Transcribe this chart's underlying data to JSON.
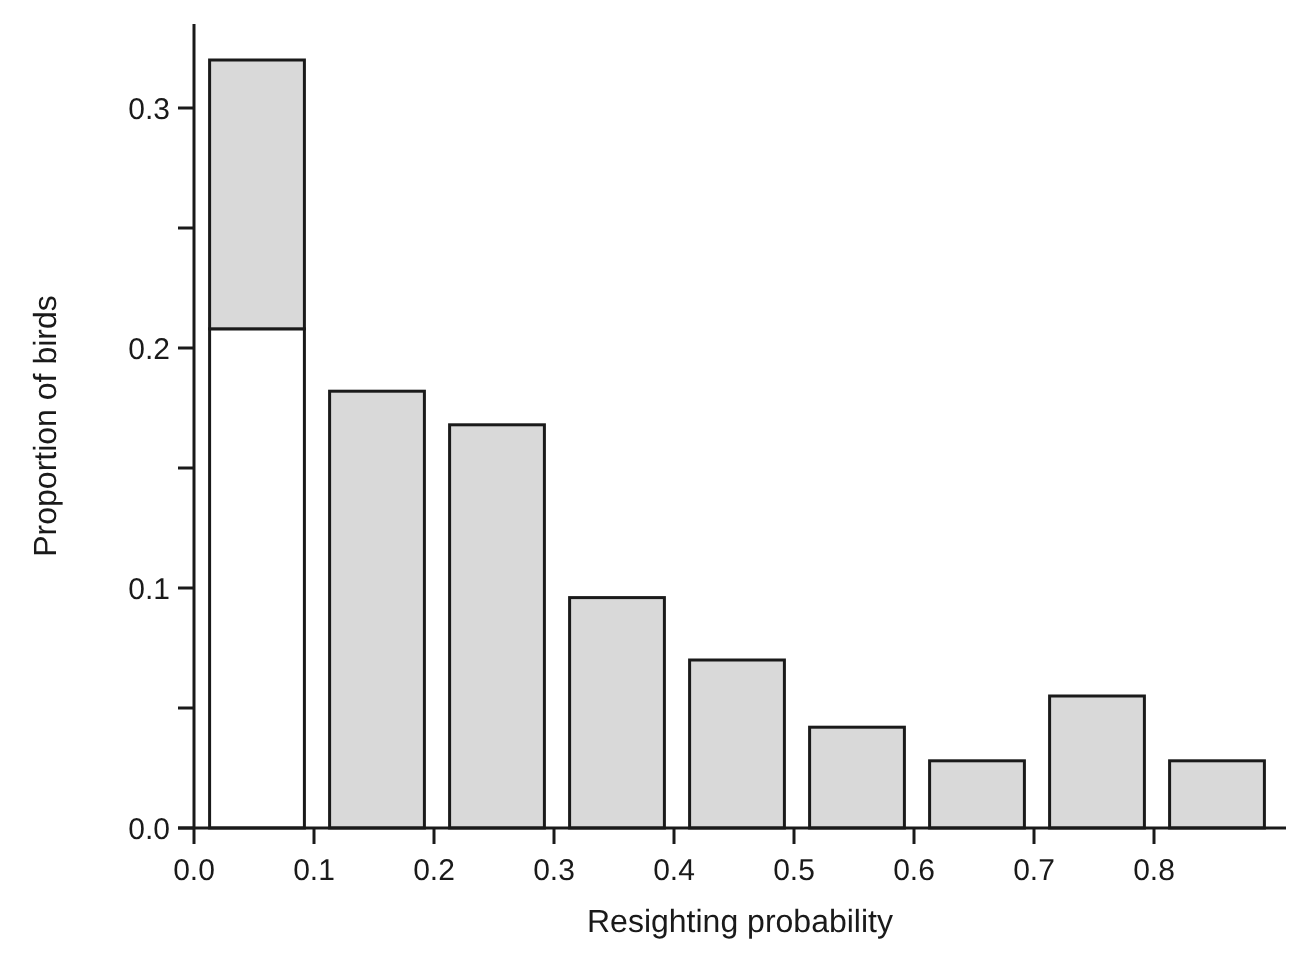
{
  "chart_data": {
    "type": "bar",
    "xlabel": "Resighting probability",
    "ylabel": "Proportion of birds",
    "x": [
      0.05,
      0.15,
      0.25,
      0.35,
      0.45,
      0.55,
      0.65,
      0.75,
      0.85
    ],
    "stacked": true,
    "series": [
      {
        "color": "#ffffff",
        "values": [
          0.208,
          null,
          null,
          null,
          null,
          null,
          null,
          null,
          null
        ]
      },
      {
        "color": "#d9d9d9",
        "values": [
          0.112,
          0.182,
          0.168,
          0.096,
          0.07,
          0.042,
          0.028,
          0.055,
          0.028
        ]
      }
    ],
    "xlim": [
      0,
      0.91
    ],
    "xticks": [
      {
        "value": 0,
        "label": "0.0"
      },
      0.1,
      0.2,
      0.3,
      0.4,
      0.5,
      0.6,
      0.7,
      0.8
    ],
    "ylim": [
      0,
      0.335
    ],
    "yticks": [
      {
        "value": 0,
        "label": "0.0"
      },
      {
        "value": 0.05,
        "label": null
      },
      0.1,
      {
        "value": 0.15,
        "label": null
      },
      0.2,
      {
        "value": 0.25,
        "label": null
      },
      0.3
    ],
    "grid": false
  }
}
